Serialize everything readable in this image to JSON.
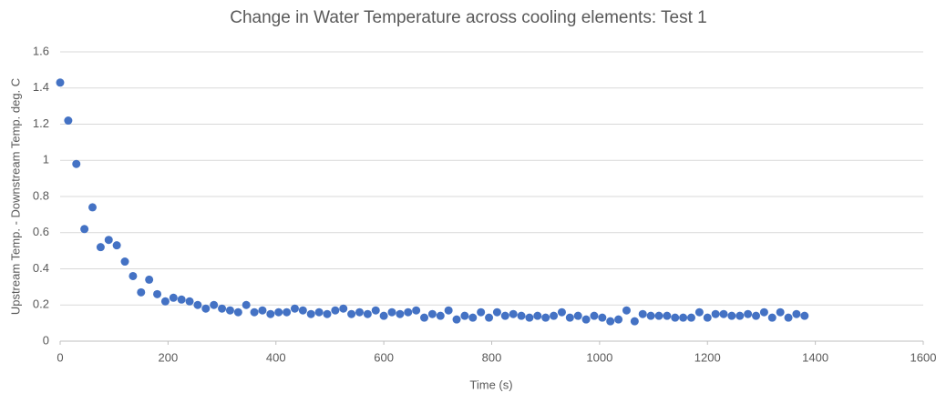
{
  "chart_data": {
    "type": "scatter",
    "title": "Change in Water Temperature across cooling elements: Test 1",
    "x_label": "Time (s)",
    "y_label": "Upstream Temp. - Downstream Temp.  deg. C",
    "color": "#4472c4",
    "grid": true,
    "xlim": [
      0,
      1600
    ],
    "xticks": [
      0,
      200,
      400,
      600,
      800,
      1000,
      1200,
      1400,
      1600
    ],
    "ylim": [
      0,
      1.6
    ],
    "yticks": [
      0,
      0.2,
      0.4,
      0.6,
      0.8,
      1,
      1.2,
      1.4,
      1.6
    ],
    "x": [
      0,
      15,
      30,
      45,
      60,
      75,
      90,
      105,
      120,
      135,
      150,
      165,
      180,
      195,
      210,
      225,
      240,
      255,
      270,
      285,
      300,
      315,
      330,
      345,
      360,
      375,
      390,
      405,
      420,
      435,
      450,
      465,
      480,
      495,
      510,
      525,
      540,
      555,
      570,
      585,
      600,
      615,
      630,
      645,
      660,
      675,
      690,
      705,
      720,
      735,
      750,
      765,
      780,
      795,
      810,
      825,
      840,
      855,
      870,
      885,
      900,
      915,
      930,
      945,
      960,
      975,
      990,
      1005,
      1020,
      1035,
      1050,
      1065,
      1080,
      1095,
      1110,
      1125,
      1140,
      1155,
      1170,
      1185,
      1200,
      1215,
      1230,
      1245,
      1260,
      1275,
      1290,
      1305,
      1320,
      1335,
      1350,
      1365,
      1380
    ],
    "values": [
      1.43,
      1.22,
      0.98,
      0.62,
      0.74,
      0.52,
      0.56,
      0.53,
      0.44,
      0.36,
      0.27,
      0.34,
      0.26,
      0.22,
      0.24,
      0.23,
      0.22,
      0.2,
      0.18,
      0.2,
      0.18,
      0.17,
      0.16,
      0.2,
      0.16,
      0.17,
      0.15,
      0.16,
      0.16,
      0.18,
      0.17,
      0.15,
      0.16,
      0.15,
      0.17,
      0.18,
      0.15,
      0.16,
      0.15,
      0.17,
      0.14,
      0.16,
      0.15,
      0.16,
      0.17,
      0.13,
      0.15,
      0.14,
      0.17,
      0.12,
      0.14,
      0.13,
      0.16,
      0.13,
      0.16,
      0.14,
      0.15,
      0.14,
      0.13,
      0.14,
      0.13,
      0.14,
      0.16,
      0.13,
      0.14,
      0.12,
      0.14,
      0.13,
      0.11,
      0.12,
      0.17,
      0.11,
      0.15,
      0.14,
      0.14,
      0.14,
      0.13,
      0.13,
      0.13,
      0.16,
      0.13,
      0.15,
      0.15,
      0.14,
      0.14,
      0.15,
      0.14,
      0.16,
      0.13,
      0.16,
      0.13,
      0.15,
      0.14
    ]
  }
}
